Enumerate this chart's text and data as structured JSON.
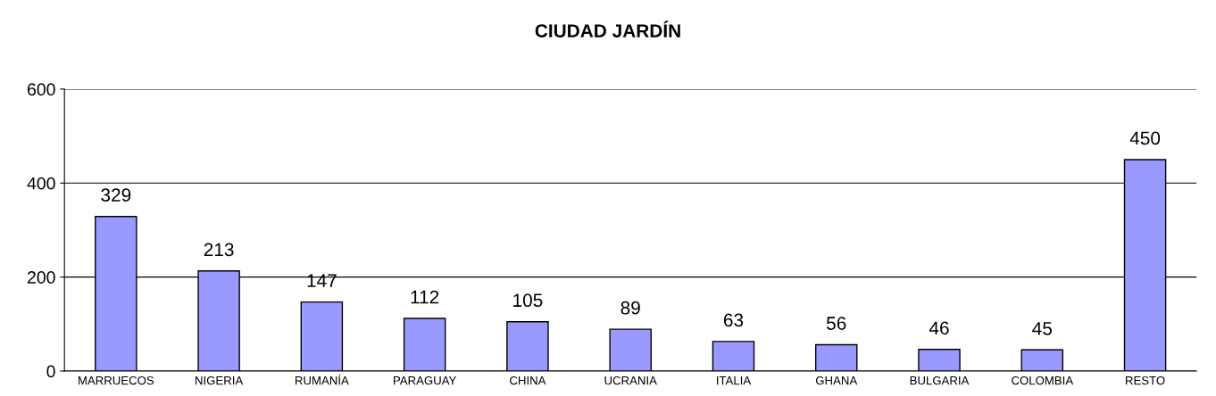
{
  "chart_data": {
    "type": "bar",
    "title": "CIUDAD JARDÍN",
    "categories": [
      "MARRUECOS",
      "NIGERIA",
      "RUMANÍA",
      "PARAGUAY",
      "CHINA",
      "UCRANIA",
      "ITALIA",
      "GHANA",
      "BULGARIA",
      "COLOMBIA",
      "RESTO"
    ],
    "values": [
      329,
      213,
      147,
      112,
      105,
      89,
      63,
      56,
      46,
      45,
      450
    ],
    "color": "#9999ff",
    "ylim": [
      0,
      600
    ],
    "yticks": [
      0,
      200,
      400,
      600
    ],
    "grid": "y",
    "data_labels": true
  }
}
